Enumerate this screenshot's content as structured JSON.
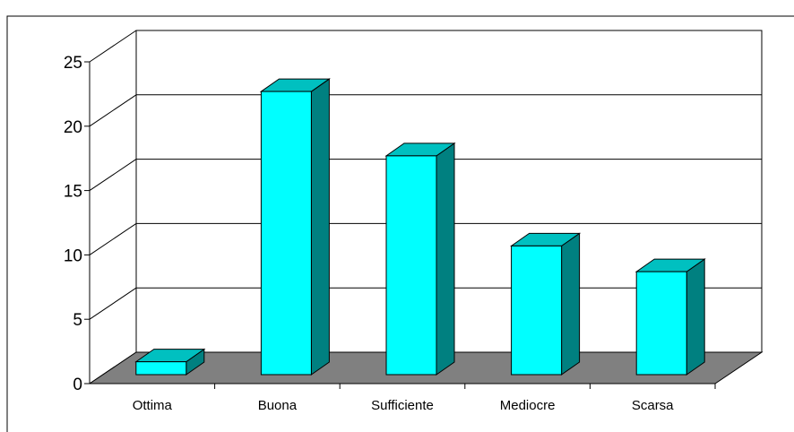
{
  "chart_data": {
    "type": "bar",
    "title": "",
    "xlabel": "",
    "ylabel": "",
    "categories": [
      "Ottima",
      "Buona",
      "Sufficiente",
      "Mediocre",
      "Scarsa"
    ],
    "values": [
      1,
      22,
      17,
      10,
      8
    ],
    "ylim": [
      0,
      25
    ],
    "yticks": [
      "0",
      "5",
      "10",
      "15",
      "20",
      "25"
    ],
    "grid": true,
    "legend": "none",
    "style": "3d-column",
    "colors": {
      "bar_front": "#00ffff",
      "bar_side": "#008080",
      "bar_top": "#00c0c0",
      "floor": "#808080",
      "grid": "#000000"
    }
  }
}
